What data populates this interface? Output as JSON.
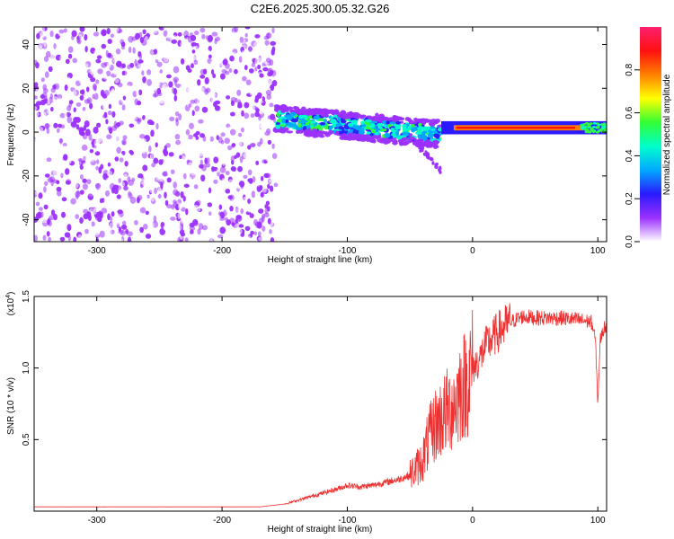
{
  "chart_data": [
    {
      "type": "heatmap",
      "title": "C2E6.2025.300.05.32.G26",
      "xlabel": "Height of straight line (km)",
      "ylabel": "Frequency (Hz)",
      "xlim": [
        -350,
        107
      ],
      "ylim": [
        -50,
        48
      ],
      "xticks": [
        -300,
        -200,
        -100,
        0,
        100
      ],
      "xtick_labels": [
        "-300",
        "-200",
        "-100",
        "0",
        "100"
      ],
      "yticks": [
        -40,
        -20,
        0,
        20,
        40
      ],
      "ytick_labels": [
        "-40",
        "-20",
        "0",
        "20",
        "40"
      ],
      "colorbar": {
        "label": "Normalized spectral amplitude",
        "range": [
          0,
          1
        ],
        "ticks": [
          0.0,
          0.2,
          0.4,
          0.6,
          0.8
        ],
        "tick_labels": [
          "0.0",
          "0.2",
          "0.4",
          "0.6",
          "0.8"
        ],
        "colors": [
          "#ffffff",
          "#9b30ff",
          "#2a1aff",
          "#00a8ff",
          "#00ffcc",
          "#33ff33",
          "#ffff00",
          "#ff7f00",
          "#ff1010",
          "#ff2070"
        ]
      },
      "regions": [
        {
          "name": "noise",
          "x_range": [
            -350,
            -157
          ],
          "f_range": [
            -50,
            48
          ],
          "level": 0.1
        },
        {
          "name": "signal-band",
          "x_range": [
            -157,
            -25
          ],
          "f_center_start": 6,
          "f_center_end": -1,
          "half_width": 6,
          "level": 0.45
        },
        {
          "name": "signal-tail",
          "x_range": [
            -50,
            -25
          ],
          "f_center_start": -2,
          "f_center_end": -18,
          "level": 0.15
        },
        {
          "name": "signal-line",
          "x_range": [
            -25,
            107
          ],
          "f_center": 2,
          "half_width": 3,
          "level": 0.9
        }
      ]
    },
    {
      "type": "line",
      "xlabel": "Height of straight line (km)",
      "ylabel": "SNR (10 * v/v)",
      "y_multiplier": "(x10",
      "y_multiplier_exp": "4",
      "y_multiplier_close": ")",
      "xlim": [
        -350,
        107
      ],
      "ylim": [
        0,
        1.5
      ],
      "xticks": [
        -300,
        -200,
        -100,
        0,
        100
      ],
      "xtick_labels": [
        "-300",
        "-200",
        "-100",
        "0",
        "100"
      ],
      "yticks": [
        0.5,
        1.0,
        1.5
      ],
      "ytick_labels": [
        "0.5",
        "1.0",
        "1.5"
      ],
      "color": "#ee3030",
      "series": [
        {
          "name": "SNR",
          "x": [
            -350,
            -300,
            -250,
            -200,
            -170,
            -150,
            -130,
            -110,
            -100,
            -90,
            -80,
            -70,
            -60,
            -50,
            -40,
            -35,
            -30,
            -25,
            -20,
            -15,
            -12,
            -10,
            -5,
            0,
            5,
            10,
            20,
            30,
            40,
            50,
            60,
            70,
            80,
            90,
            95,
            98,
            100,
            102,
            105,
            107
          ],
          "y": [
            0.03,
            0.03,
            0.03,
            0.03,
            0.03,
            0.05,
            0.1,
            0.15,
            0.18,
            0.17,
            0.18,
            0.2,
            0.22,
            0.25,
            0.35,
            0.5,
            0.6,
            0.65,
            0.7,
            0.75,
            0.8,
            0.85,
            0.9,
            1.0,
            1.05,
            1.15,
            1.25,
            1.32,
            1.36,
            1.35,
            1.35,
            1.35,
            1.34,
            1.33,
            1.32,
            1.2,
            0.75,
            1.2,
            1.28,
            1.3
          ]
        }
      ]
    }
  ]
}
